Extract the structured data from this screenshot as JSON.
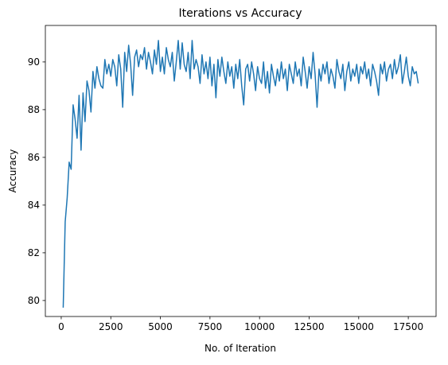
{
  "chart_data": {
    "type": "line",
    "title": "Iterations vs Accuracy",
    "xlabel": "No. of Iteration",
    "ylabel": "Accuracy",
    "x": [
      100,
      200,
      300,
      400,
      500,
      600,
      700,
      800,
      900,
      1000,
      1100,
      1200,
      1300,
      1400,
      1500,
      1600,
      1700,
      1800,
      1900,
      2000,
      2100,
      2200,
      2300,
      2400,
      2500,
      2600,
      2700,
      2800,
      2900,
      3000,
      3100,
      3200,
      3300,
      3400,
      3500,
      3600,
      3700,
      3800,
      3900,
      4000,
      4100,
      4200,
      4300,
      4400,
      4500,
      4600,
      4700,
      4800,
      4900,
      5000,
      5100,
      5200,
      5300,
      5400,
      5500,
      5600,
      5700,
      5800,
      5900,
      6000,
      6100,
      6200,
      6300,
      6400,
      6500,
      6600,
      6700,
      6800,
      6900,
      7000,
      7100,
      7200,
      7300,
      7400,
      7500,
      7600,
      7700,
      7800,
      7900,
      8000,
      8100,
      8200,
      8300,
      8400,
      8500,
      8600,
      8700,
      8800,
      8900,
      9000,
      9100,
      9200,
      9300,
      9400,
      9500,
      9600,
      9700,
      9800,
      9900,
      10000,
      10100,
      10200,
      10300,
      10400,
      10500,
      10600,
      10700,
      10800,
      10900,
      11000,
      11100,
      11200,
      11300,
      11400,
      11500,
      11600,
      11700,
      11800,
      11900,
      12000,
      12100,
      12200,
      12300,
      12400,
      12500,
      12600,
      12700,
      12800,
      12900,
      13000,
      13100,
      13200,
      13300,
      13400,
      13500,
      13600,
      13700,
      13800,
      13900,
      14000,
      14100,
      14200,
      14300,
      14400,
      14500,
      14600,
      14700,
      14800,
      14900,
      15000,
      15100,
      15200,
      15300,
      15400,
      15500,
      15600,
      15700,
      15800,
      15900,
      16000,
      16100,
      16200,
      16300,
      16400,
      16500,
      16600,
      16700,
      16800,
      16900,
      17000,
      17100,
      17200,
      17300,
      17400,
      17500,
      17600,
      17700,
      17800,
      17900,
      18000
    ],
    "series": [
      {
        "color": "#1f77b4",
        "values": [
          79.7,
          83.3,
          84.3,
          85.8,
          85.5,
          88.2,
          87.6,
          86.8,
          88.6,
          86.3,
          88.7,
          87.5,
          89.2,
          88.8,
          87.9,
          89.6,
          88.9,
          89.8,
          89.3,
          89.0,
          88.9,
          90.1,
          89.5,
          89.9,
          89.4,
          90.1,
          89.8,
          89.0,
          90.3,
          89.7,
          88.1,
          90.4,
          89.6,
          90.7,
          89.9,
          88.6,
          90.2,
          90.5,
          89.8,
          90.3,
          90.1,
          90.6,
          89.7,
          90.4,
          90.0,
          89.5,
          90.5,
          89.9,
          90.9,
          89.6,
          90.2,
          89.5,
          90.6,
          90.1,
          89.8,
          90.4,
          89.2,
          90.0,
          90.9,
          89.7,
          90.8,
          89.9,
          89.6,
          90.4,
          89.3,
          90.9,
          89.7,
          90.1,
          89.8,
          89.1,
          90.3,
          89.5,
          90.0,
          89.3,
          90.2,
          89.0,
          89.9,
          88.5,
          90.1,
          89.4,
          90.2,
          89.6,
          89.1,
          90.0,
          89.4,
          89.8,
          88.9,
          89.9,
          89.3,
          90.1,
          89.0,
          88.2,
          89.7,
          89.9,
          89.2,
          90.0,
          89.5,
          88.8,
          89.8,
          89.3,
          89.1,
          90.0,
          88.9,
          89.6,
          88.7,
          89.9,
          89.4,
          89.0,
          89.7,
          89.2,
          90.0,
          89.3,
          89.7,
          88.8,
          89.9,
          89.5,
          89.1,
          90.0,
          89.4,
          89.7,
          89.0,
          90.2,
          89.6,
          88.9,
          89.8,
          89.3,
          90.4,
          89.5,
          88.1,
          89.7,
          89.2,
          89.9,
          89.5,
          90.0,
          89.1,
          89.7,
          89.4,
          88.9,
          90.1,
          89.6,
          89.3,
          89.9,
          88.8,
          89.6,
          90.0,
          89.2,
          89.7,
          89.4,
          89.9,
          89.1,
          89.8,
          89.5,
          90.0,
          89.3,
          89.7,
          89.0,
          89.9,
          89.6,
          89.2,
          88.6,
          89.9,
          89.5,
          90.0,
          89.2,
          89.7,
          89.9,
          89.3,
          90.1,
          89.5,
          89.8,
          90.3,
          89.1,
          89.6,
          90.2,
          89.4,
          89.0,
          89.8,
          89.5,
          89.6,
          89.1
        ]
      }
    ],
    "xlim": [
      -800,
      18900
    ],
    "ylim": [
      79.33,
      91.53
    ],
    "xticks": [
      0,
      2500,
      5000,
      7500,
      10000,
      12500,
      15000,
      17500
    ],
    "yticks": [
      80,
      82,
      84,
      86,
      88,
      90
    ]
  }
}
